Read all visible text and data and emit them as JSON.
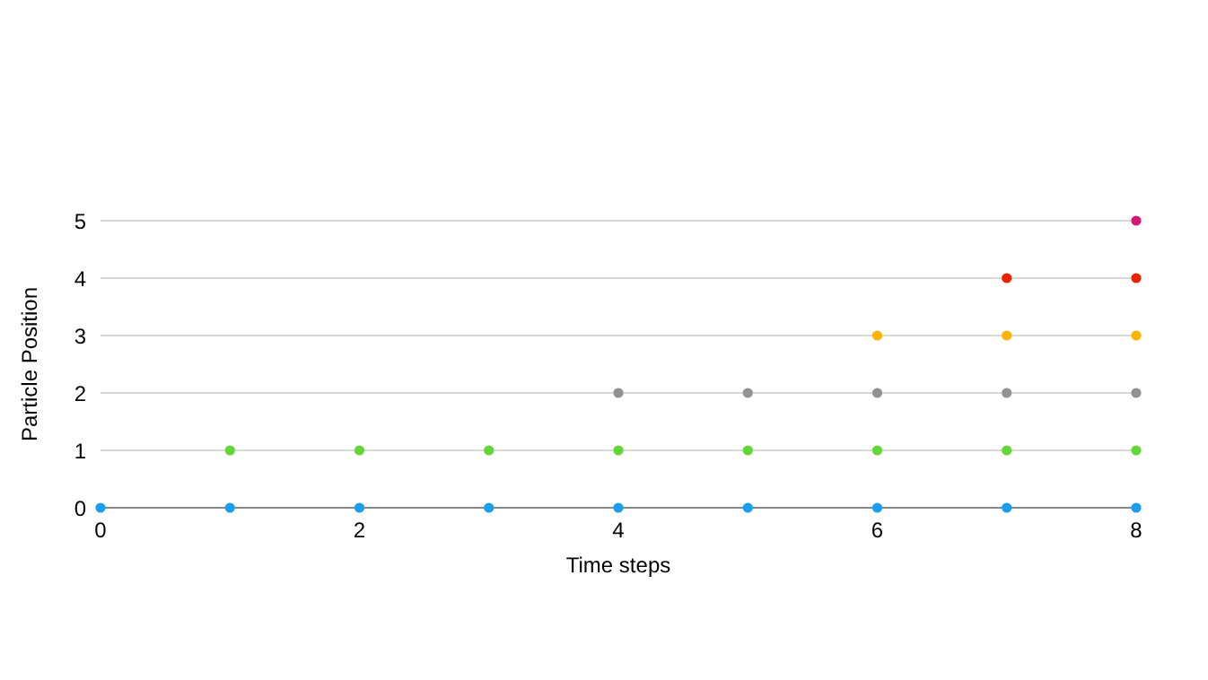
{
  "chart_data": {
    "type": "scatter",
    "xlabel": "Time steps",
    "ylabel": "Particle Position",
    "xlim": [
      0,
      8
    ],
    "xticks": [
      0,
      2,
      4,
      6,
      8
    ],
    "ylim": [
      0,
      5
    ],
    "yticks": [
      0,
      1,
      2,
      3,
      4,
      5
    ],
    "grid": "y",
    "marker": "circle",
    "series": [
      {
        "color": "#1a9ff0",
        "x": [
          0,
          1,
          2,
          3,
          4,
          5,
          6,
          7,
          8
        ],
        "values": [
          0,
          0,
          0,
          0,
          0,
          0,
          0,
          0,
          0
        ]
      },
      {
        "color": "#61d836",
        "x": [
          1,
          2,
          3,
          4,
          5,
          6,
          7,
          8
        ],
        "values": [
          1,
          1,
          1,
          1,
          1,
          1,
          1,
          1
        ]
      },
      {
        "color": "#929292",
        "x": [
          4,
          5,
          6,
          7,
          8
        ],
        "values": [
          2,
          2,
          2,
          2,
          2
        ]
      },
      {
        "color": "#fcb400",
        "x": [
          6,
          7,
          8
        ],
        "values": [
          3,
          3,
          3
        ]
      },
      {
        "color": "#ee2200",
        "x": [
          7,
          8
        ],
        "values": [
          4,
          4
        ]
      },
      {
        "color": "#d41876",
        "x": [
          8
        ],
        "values": [
          5
        ]
      }
    ]
  }
}
